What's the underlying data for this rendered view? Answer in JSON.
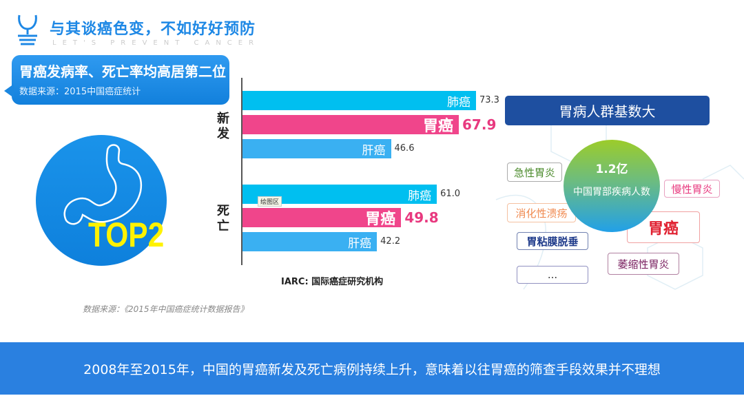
{
  "header": {
    "title": "与其谈癌色变，不如好好预防",
    "subtitle": "LET'S PREVENT CANCER"
  },
  "callout": {
    "heading": "胃癌发病率、死亡率均高居第二位",
    "source": "数据来源：2015中国癌症统计"
  },
  "badge": {
    "text": "TOP2"
  },
  "chart_data": {
    "type": "bar",
    "orientation": "horizontal",
    "groups": [
      {
        "label": "新发",
        "bars": [
          {
            "name": "肺癌",
            "value": 73.3
          },
          {
            "name": "胃癌",
            "value": 67.9,
            "highlight": true
          },
          {
            "name": "肝癌",
            "value": 46.6
          }
        ]
      },
      {
        "label": "死亡",
        "bars": [
          {
            "name": "肺癌",
            "value": 61.0
          },
          {
            "name": "胃癌",
            "value": 49.8,
            "highlight": true
          },
          {
            "name": "肝癌",
            "value": 42.2
          }
        ]
      }
    ],
    "values_text": [
      "73.3",
      "67.9",
      "46.6",
      "61.0",
      "49.8",
      "42.2"
    ],
    "xlim": [
      0,
      80
    ],
    "colors": {
      "肺癌": "#00bff0",
      "胃癌": "#f0458b",
      "肝癌": "#3ab0f2"
    },
    "plot_area_label": "绘图区",
    "caption": "IARC: 国际癌症研究机构"
  },
  "footnote": "数据来源：《2015年中国癌症统计数据报告》",
  "right": {
    "heading": "胃病人群基数大",
    "center_number": "1.2亿",
    "center_label": "中国胃部疾病人数",
    "tags": [
      "急性胃炎",
      "慢性胃炎",
      "消化性溃疡",
      "胃癌",
      "胃粘膜脱垂",
      "萎缩性胃炎",
      "..."
    ]
  },
  "banner": "2008年至2015年，中国的胃癌新发及死亡病例持续上升，意味着以往胃癌的筛查手段效果并不理想"
}
